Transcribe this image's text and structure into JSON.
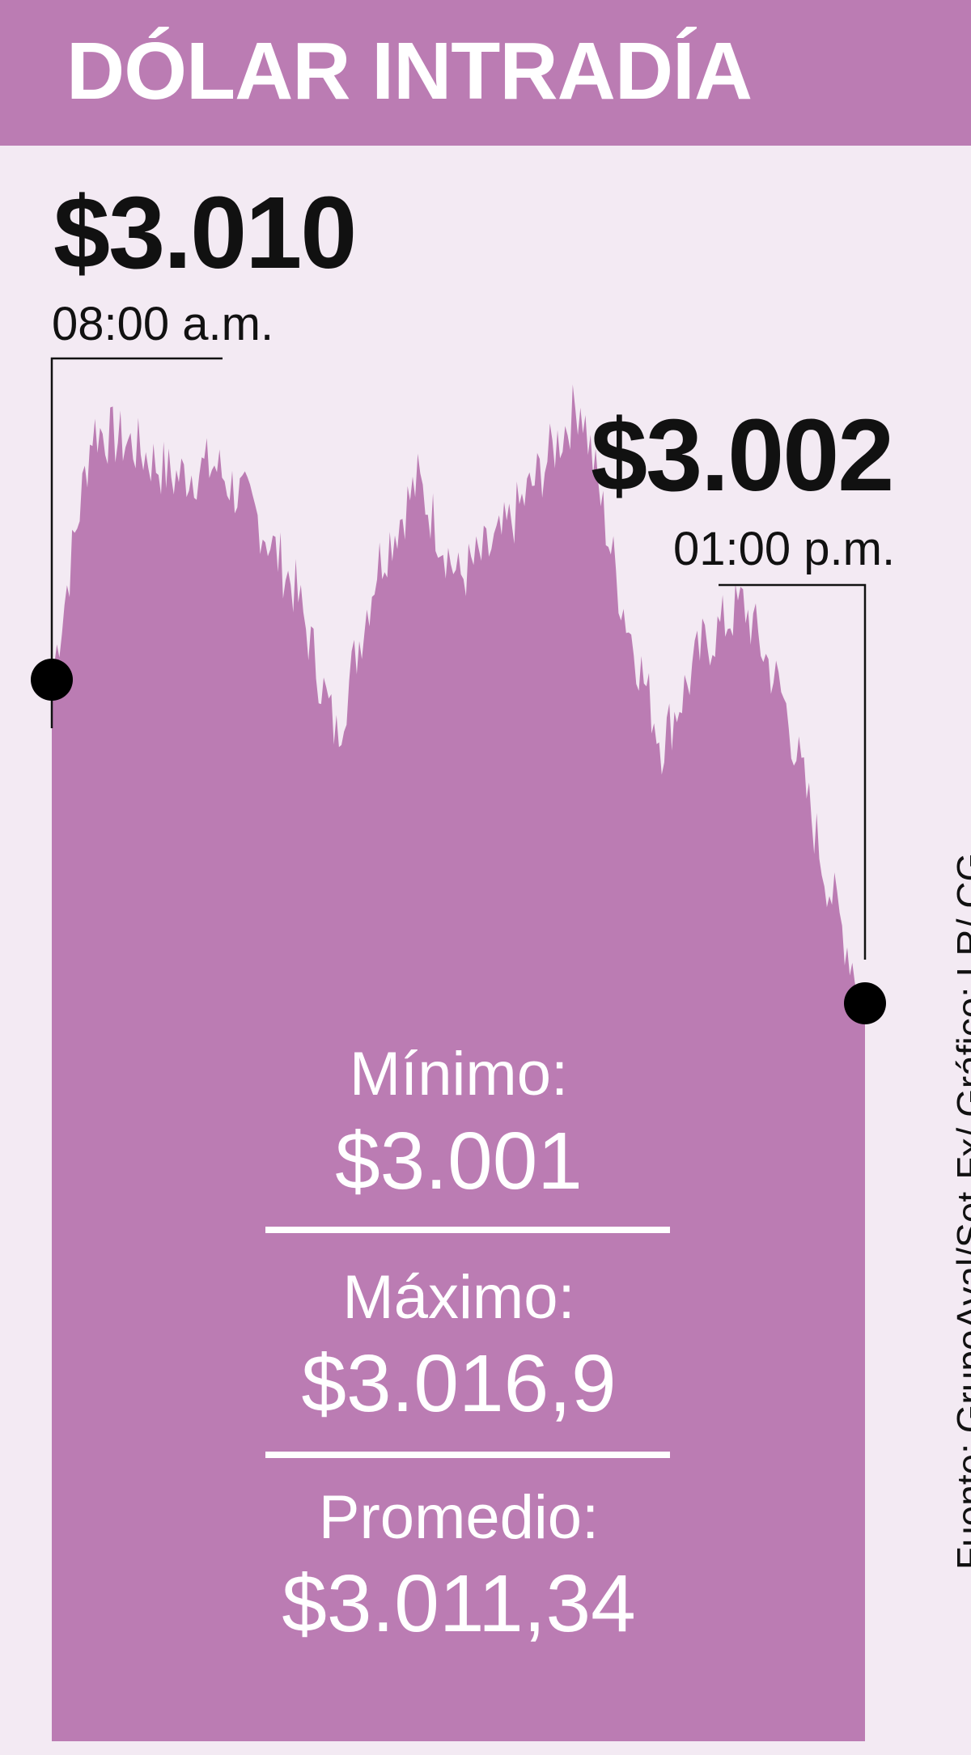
{
  "header": {
    "title": "DÓLAR INTRADÍA"
  },
  "colors": {
    "header_bg": "#bb7cb3",
    "page_bg": "#f3eaf3",
    "area_fill": "#bb7cb3",
    "marker": "#000000",
    "stats_text": "#ffffff"
  },
  "chart_data": {
    "type": "area",
    "title": "DÓLAR INTRADÍA",
    "xlabel": "",
    "ylabel": "",
    "x_range": [
      "08:00 a.m.",
      "01:00 p.m."
    ],
    "ylim": [
      2998,
      3020
    ],
    "grid": false,
    "legend": "none",
    "x": [
      "08:00",
      "08:15",
      "08:30",
      "08:45",
      "09:00",
      "09:15",
      "09:30",
      "09:45",
      "10:00",
      "10:15",
      "10:30",
      "10:45",
      "11:00",
      "11:15",
      "11:30",
      "11:45",
      "12:00",
      "12:15",
      "12:30",
      "12:45",
      "13:00"
    ],
    "values": [
      3010,
      3016.2,
      3015.8,
      3015.0,
      3015.3,
      3014.1,
      3012.2,
      3008.6,
      3012.8,
      3014.9,
      3012.5,
      3013.4,
      3015.1,
      3016.9,
      3012.0,
      3008.4,
      3010.8,
      3011.9,
      3009.5,
      3005.3,
      3002
    ],
    "open": {
      "value": "$3.010",
      "time": "08:00 a.m."
    },
    "close": {
      "value": "$3.002",
      "time": "01:00 p.m."
    }
  },
  "stats": {
    "min": {
      "label": "Mínimo:",
      "value": "$3.001"
    },
    "max": {
      "label": "Máximo:",
      "value": "$3.016,9"
    },
    "avg": {
      "label": "Promedio:",
      "value": "$3.011,34"
    }
  },
  "source": "Fuente: GrupoAval/Set-Fx/ Gráfico: LR/ CG"
}
